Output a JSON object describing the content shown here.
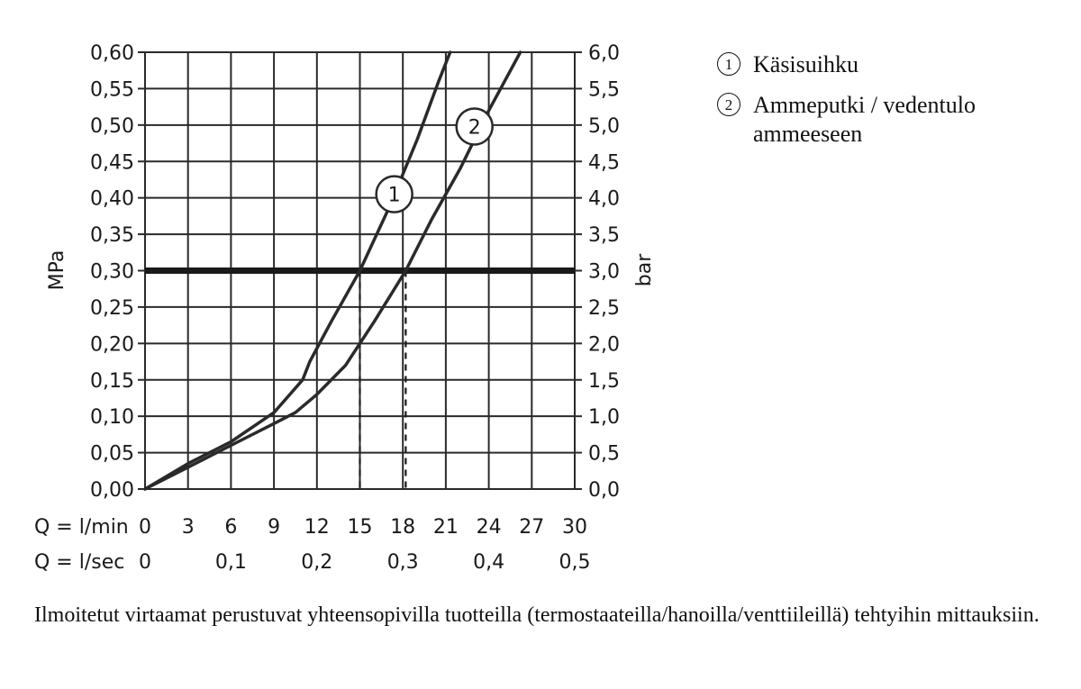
{
  "chart_data": {
    "type": "line",
    "left_axis": {
      "label": "MPa",
      "ticks": [
        "0,00",
        "0,05",
        "0,10",
        "0,15",
        "0,20",
        "0,25",
        "0,30",
        "0,35",
        "0,40",
        "0,45",
        "0,50",
        "0,55",
        "0,60"
      ],
      "range": [
        0,
        0.6
      ]
    },
    "right_axis": {
      "label": "bar",
      "ticks": [
        "0,0",
        "0,5",
        "1,0",
        "1,5",
        "2,0",
        "2,5",
        "3,0",
        "3,5",
        "4,0",
        "4,5",
        "5,0",
        "5,5",
        "6,0"
      ],
      "range": [
        0,
        6
      ]
    },
    "x_axis_lmin": {
      "label": "Q = l/min",
      "ticks": [
        "0",
        "3",
        "6",
        "9",
        "12",
        "15",
        "18",
        "21",
        "24",
        "27",
        "30"
      ],
      "range": [
        0,
        30
      ]
    },
    "x_axis_lsec": {
      "label": "Q = l/sec",
      "ticks": [
        "0",
        "0,1",
        "0,2",
        "0,3",
        "0,4",
        "0,5"
      ]
    },
    "grid": true,
    "reference_line": {
      "y": 0.3,
      "style": "thick"
    },
    "drop_lines": [
      {
        "x": 15,
        "y": 0.3
      },
      {
        "x": 18.2,
        "y": 0.3
      }
    ],
    "series": [
      {
        "name": "Käsisuihku",
        "marker_label": "1",
        "marker_at": {
          "x": 17.4,
          "y": 0.405
        },
        "x": [
          0,
          3,
          6,
          9,
          11,
          11.5,
          13,
          15,
          17,
          19,
          20.5,
          21.3
        ],
        "y": [
          0,
          0.035,
          0.065,
          0.105,
          0.15,
          0.175,
          0.23,
          0.3,
          0.385,
          0.48,
          0.56,
          0.6
        ]
      },
      {
        "name": "Ammeputki / vedentulo ammeeseen",
        "marker_label": "2",
        "marker_at": {
          "x": 23.0,
          "y": 0.498
        },
        "x": [
          0,
          3,
          6,
          9,
          10.5,
          12,
          14,
          16,
          18.2,
          20,
          22,
          24,
          26.2
        ],
        "y": [
          0,
          0.03,
          0.06,
          0.09,
          0.105,
          0.13,
          0.17,
          0.23,
          0.3,
          0.37,
          0.44,
          0.52,
          0.6
        ]
      }
    ]
  },
  "legend": [
    {
      "num": "1",
      "label": "Käsisuihku"
    },
    {
      "num": "2",
      "label": "Ammeputki / vedentulo ammeeseen"
    }
  ],
  "footnote": "Ilmoitetut virtaamat perustuvat yhteensopivilla tuotteilla (termostaateilla/hanoilla/venttiileillä) tehtyihin mittauksiin.",
  "colors": {
    "ink": "#2a2a2a",
    "background": "#ffffff"
  }
}
